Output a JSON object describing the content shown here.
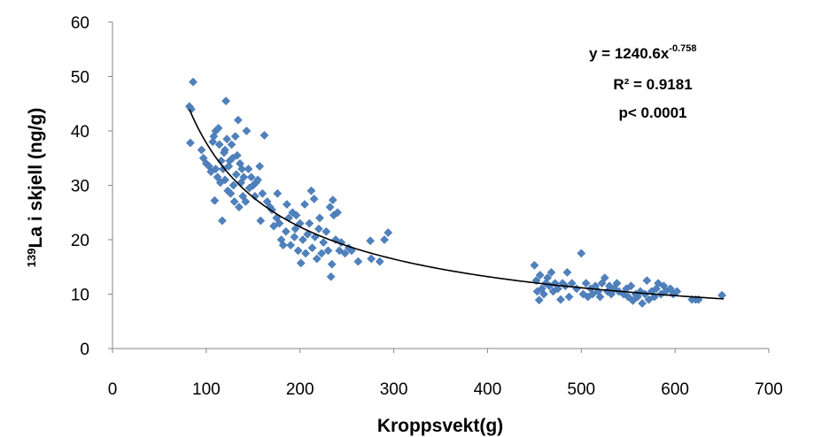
{
  "chart_data": {
    "type": "scatter",
    "title": "",
    "xlabel": "Kroppsvekt(g)",
    "ylabel_superscript": "139",
    "ylabel_main": "La i skjell (ng/g)",
    "xlim": [
      0,
      700
    ],
    "ylim": [
      0,
      60
    ],
    "x_ticks": [
      "0",
      "100",
      "200",
      "300",
      "400",
      "500",
      "600",
      "700"
    ],
    "y_ticks": [
      "0",
      "10",
      "20",
      "30",
      "40",
      "50",
      "60"
    ],
    "grid": false,
    "legend": "none",
    "marker_color": "#4F81BD",
    "trendline_color": "#000000",
    "trendline": {
      "type": "power",
      "a": 1240.6,
      "b": -0.758,
      "x_from": 82,
      "x_to": 652
    },
    "annotations": {
      "equation_base": "y = 1240.6x",
      "equation_exp": "-0.758",
      "r_squared": "R² = 0.9181",
      "p_value": "p< 0.0001"
    },
    "points": [
      [
        82,
        44.5
      ],
      [
        83,
        37.8
      ],
      [
        84,
        44.0
      ],
      [
        86,
        49.0
      ],
      [
        95,
        36.5
      ],
      [
        97,
        35.0
      ],
      [
        100,
        34.0
      ],
      [
        103,
        33.5
      ],
      [
        105,
        32.5
      ],
      [
        107,
        38.0
      ],
      [
        108,
        39.0
      ],
      [
        109,
        27.2
      ],
      [
        110,
        40.0
      ],
      [
        110,
        33.0
      ],
      [
        112,
        31.5
      ],
      [
        113,
        40.5
      ],
      [
        114,
        37.5
      ],
      [
        115,
        30.5
      ],
      [
        116,
        34.5
      ],
      [
        117,
        23.5
      ],
      [
        118,
        33.0
      ],
      [
        119,
        36.0
      ],
      [
        120,
        36.5
      ],
      [
        120,
        31.0
      ],
      [
        121,
        45.5
      ],
      [
        122,
        38.5
      ],
      [
        123,
        29.0
      ],
      [
        124,
        33.5
      ],
      [
        125,
        34.5
      ],
      [
        126,
        28.5
      ],
      [
        127,
        37.5
      ],
      [
        128,
        35.0
      ],
      [
        129,
        30.0
      ],
      [
        130,
        27.0
      ],
      [
        131,
        39.0
      ],
      [
        132,
        32.0
      ],
      [
        133,
        35.5
      ],
      [
        134,
        42.0
      ],
      [
        135,
        26.0
      ],
      [
        136,
        34.0
      ],
      [
        137,
        30.5
      ],
      [
        138,
        33.0
      ],
      [
        139,
        28.0
      ],
      [
        140,
        31.5
      ],
      [
        142,
        27.0
      ],
      [
        143,
        40.0
      ],
      [
        145,
        33.0
      ],
      [
        146,
        29.5
      ],
      [
        148,
        31.5
      ],
      [
        150,
        30.0
      ],
      [
        152,
        28.0
      ],
      [
        153,
        30.5
      ],
      [
        155,
        31.0
      ],
      [
        157,
        33.5
      ],
      [
        158,
        23.5
      ],
      [
        160,
        28.5
      ],
      [
        162,
        39.2
      ],
      [
        165,
        27.0
      ],
      [
        168,
        26.0
      ],
      [
        170,
        25.5
      ],
      [
        172,
        22.5
      ],
      [
        175,
        24.0
      ],
      [
        176,
        28.5
      ],
      [
        178,
        23.0
      ],
      [
        180,
        20.0
      ],
      [
        182,
        19.0
      ],
      [
        185,
        21.5
      ],
      [
        186,
        26.5
      ],
      [
        188,
        24.0
      ],
      [
        190,
        19.0
      ],
      [
        192,
        25.0
      ],
      [
        194,
        20.5
      ],
      [
        195,
        22.0
      ],
      [
        196,
        24.5
      ],
      [
        198,
        18.0
      ],
      [
        200,
        23.0
      ],
      [
        201,
        15.7
      ],
      [
        203,
        20.0
      ],
      [
        205,
        26.5
      ],
      [
        206,
        17.5
      ],
      [
        208,
        21.0
      ],
      [
        210,
        23.0
      ],
      [
        212,
        29.0
      ],
      [
        213,
        18.5
      ],
      [
        215,
        27.5
      ],
      [
        216,
        20.5
      ],
      [
        218,
        16.5
      ],
      [
        220,
        22.0
      ],
      [
        221,
        24.0
      ],
      [
        223,
        17.5
      ],
      [
        225,
        19.5
      ],
      [
        228,
        21.5
      ],
      [
        230,
        18.0
      ],
      [
        232,
        26.0
      ],
      [
        233,
        13.2
      ],
      [
        234,
        15.5
      ],
      [
        235,
        27.3
      ],
      [
        236,
        24.5
      ],
      [
        238,
        20.0
      ],
      [
        240,
        25.0
      ],
      [
        242,
        18.0
      ],
      [
        244,
        19.5
      ],
      [
        248,
        17.5
      ],
      [
        252,
        18.5
      ],
      [
        255,
        18.0
      ],
      [
        262,
        16.0
      ],
      [
        275,
        19.8
      ],
      [
        276,
        16.5
      ],
      [
        285,
        16.0
      ],
      [
        290,
        20.0
      ],
      [
        294,
        21.3
      ],
      [
        450,
        15.3
      ],
      [
        452,
        12.5
      ],
      [
        453,
        10.5
      ],
      [
        455,
        8.9
      ],
      [
        456,
        13.5
      ],
      [
        458,
        11.0
      ],
      [
        460,
        10.0
      ],
      [
        462,
        12.0
      ],
      [
        464,
        13.0
      ],
      [
        466,
        11.5
      ],
      [
        468,
        14.0
      ],
      [
        470,
        10.5
      ],
      [
        472,
        12.0
      ],
      [
        475,
        11.0
      ],
      [
        478,
        9.0
      ],
      [
        480,
        12.0
      ],
      [
        483,
        11.5
      ],
      [
        485,
        14.0
      ],
      [
        487,
        9.5
      ],
      [
        490,
        12.0
      ],
      [
        495,
        11.0
      ],
      [
        500,
        17.5
      ],
      [
        502,
        10.0
      ],
      [
        505,
        12.0
      ],
      [
        507,
        9.5
      ],
      [
        510,
        11.0
      ],
      [
        512,
        10.0
      ],
      [
        515,
        11.5
      ],
      [
        518,
        10.5
      ],
      [
        520,
        9.5
      ],
      [
        522,
        12.0
      ],
      [
        525,
        13.0
      ],
      [
        528,
        10.5
      ],
      [
        530,
        11.5
      ],
      [
        532,
        10.0
      ],
      [
        535,
        11.0
      ],
      [
        538,
        12.0
      ],
      [
        540,
        10.5
      ],
      [
        545,
        10.0
      ],
      [
        548,
        11.0
      ],
      [
        550,
        9.5
      ],
      [
        553,
        11.5
      ],
      [
        555,
        8.8
      ],
      [
        558,
        10.0
      ],
      [
        560,
        9.5
      ],
      [
        563,
        10.5
      ],
      [
        565,
        8.3
      ],
      [
        568,
        10.0
      ],
      [
        570,
        12.5
      ],
      [
        572,
        9.0
      ],
      [
        575,
        10.5
      ],
      [
        578,
        9.5
      ],
      [
        580,
        11.0
      ],
      [
        582,
        12.0
      ],
      [
        585,
        10.0
      ],
      [
        588,
        11.5
      ],
      [
        590,
        10.5
      ],
      [
        595,
        11.0
      ],
      [
        598,
        10.0
      ],
      [
        602,
        10.5
      ],
      [
        618,
        9.0
      ],
      [
        622,
        9.0
      ],
      [
        625,
        9.0
      ],
      [
        650,
        9.8
      ]
    ]
  }
}
